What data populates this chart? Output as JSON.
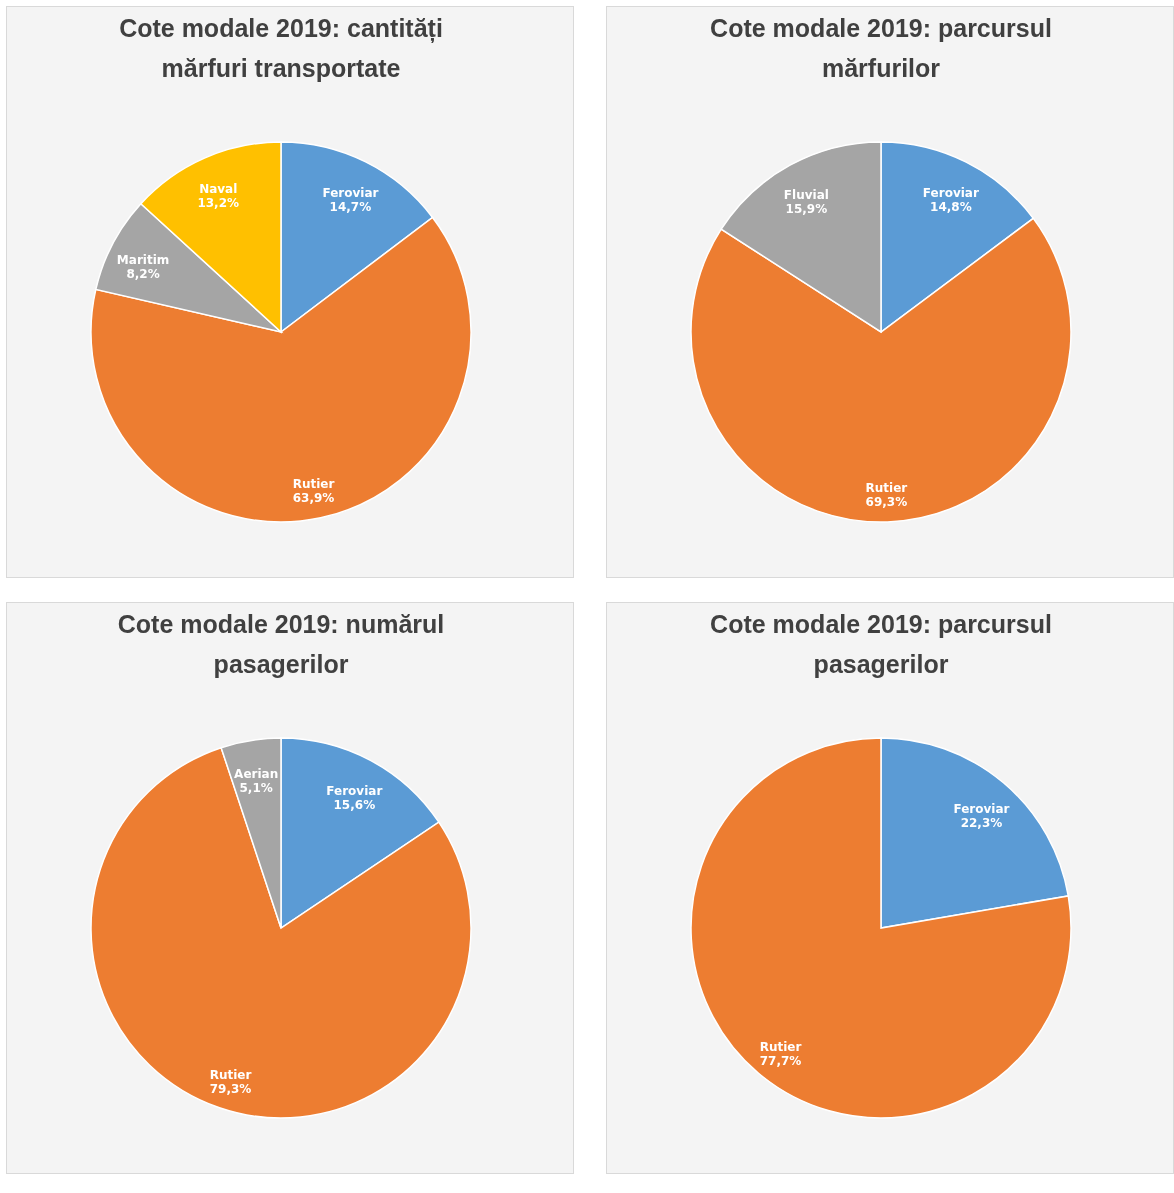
{
  "chart_data": [
    {
      "type": "pie",
      "title": "Cote modale 2019: cantități mărfuri transportate",
      "categories": [
        "Feroviar",
        "Rutier",
        "Maritim",
        "Naval"
      ],
      "values": [
        14.7,
        63.9,
        8.2,
        13.2
      ],
      "colors": [
        "#5b9bd5",
        "#ed7d31",
        "#a5a5a5",
        "#ffc000"
      ],
      "value_labels": [
        "14,7%",
        "63,9%",
        "8,2%",
        "13,2%"
      ],
      "legend": false
    },
    {
      "type": "pie",
      "title": "Cote modale 2019: parcursul mărfurilor",
      "categories": [
        "Feroviar",
        "Rutier",
        "Fluvial"
      ],
      "values": [
        14.8,
        69.3,
        15.9
      ],
      "colors": [
        "#5b9bd5",
        "#ed7d31",
        "#a5a5a5"
      ],
      "value_labels": [
        "14,8%",
        "69,3%",
        "15,9%"
      ],
      "legend": false
    },
    {
      "type": "pie",
      "title": "Cote modale 2019: numărul pasagerilor",
      "categories": [
        "Feroviar",
        "Rutier",
        "Aerian"
      ],
      "values": [
        15.6,
        79.3,
        5.1
      ],
      "colors": [
        "#5b9bd5",
        "#ed7d31",
        "#a5a5a5"
      ],
      "value_labels": [
        "15,6%",
        "79,3%",
        "5,1%"
      ],
      "legend": false
    },
    {
      "type": "pie",
      "title": "Cote modale 2019: parcursul pasagerilor",
      "categories": [
        "Feroviar",
        "Rutier"
      ],
      "values": [
        22.3,
        77.7
      ],
      "colors": [
        "#5b9bd5",
        "#ed7d31"
      ],
      "value_labels": [
        "22,3%",
        "77,7%"
      ],
      "legend": false
    }
  ]
}
